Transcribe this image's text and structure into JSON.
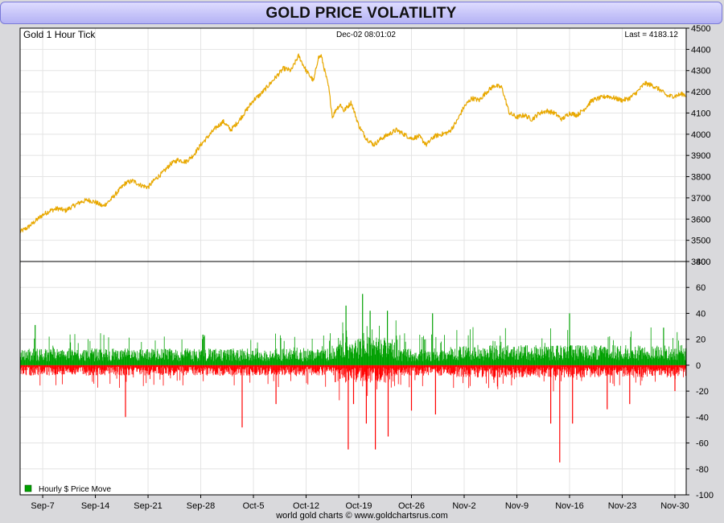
{
  "header": {
    "title": "GOLD PRICE VOLATILITY"
  },
  "chart_data": [
    {
      "type": "line",
      "title": "Gold 1 Hour Tick",
      "timestamp": "Dec-02  08:01:02",
      "last_label": "Last = 4183.12",
      "last_value": 4183.12,
      "ylim": [
        3400,
        4500
      ],
      "y_ticks": [
        3400,
        3500,
        3600,
        3700,
        3800,
        3900,
        4000,
        4100,
        4200,
        4300,
        4400,
        4500
      ],
      "color": "#e8a800",
      "series": [
        {
          "name": "Gold",
          "x_day": [
            0,
            1,
            2,
            3,
            4,
            5,
            6,
            7,
            8,
            9,
            10,
            11,
            12,
            13,
            14,
            15,
            16,
            17,
            18,
            19,
            20,
            21,
            22,
            23,
            24,
            25,
            26,
            27,
            28,
            29,
            30,
            31,
            32,
            33,
            34,
            35,
            36,
            37,
            38,
            39,
            39.6,
            40,
            41,
            41.5,
            42,
            42.6,
            43,
            44,
            45,
            46,
            47,
            48,
            49,
            50,
            51,
            52,
            53,
            54,
            55,
            56,
            57,
            58,
            59,
            60,
            61,
            62,
            63,
            64,
            65,
            66,
            67,
            68,
            69,
            70,
            71,
            72,
            73,
            74,
            75,
            76,
            77,
            78,
            79,
            80,
            81,
            82,
            83,
            84,
            85,
            86,
            87,
            88,
            88.5
          ],
          "values": [
            3540,
            3560,
            3590,
            3620,
            3640,
            3650,
            3640,
            3660,
            3680,
            3690,
            3680,
            3660,
            3690,
            3730,
            3770,
            3780,
            3760,
            3750,
            3790,
            3820,
            3860,
            3880,
            3870,
            3900,
            3950,
            3990,
            4030,
            4060,
            4020,
            4060,
            4110,
            4160,
            4190,
            4230,
            4270,
            4310,
            4300,
            4370,
            4300,
            4250,
            4360,
            4370,
            4220,
            4080,
            4120,
            4140,
            4110,
            4150,
            4040,
            3980,
            3950,
            3980,
            4000,
            4020,
            4000,
            3980,
            3990,
            3950,
            3990,
            4000,
            4010,
            4060,
            4130,
            4170,
            4160,
            4200,
            4230,
            4220,
            4100,
            4080,
            4090,
            4070,
            4100,
            4110,
            4100,
            4070,
            4100,
            4090,
            4120,
            4160,
            4170,
            4180,
            4170,
            4160,
            4170,
            4200,
            4240,
            4230,
            4210,
            4180,
            4180,
            4190,
            4183
          ]
        }
      ]
    },
    {
      "type": "bar",
      "title": "Hourly $ Price Move",
      "ylim": [
        -100,
        80
      ],
      "y_ticks": [
        -100,
        -80,
        -60,
        -40,
        -20,
        0,
        20,
        40,
        60,
        80
      ],
      "pos_color": "#00a000",
      "neg_color": "#ff0000",
      "spikes": [
        {
          "day": 2,
          "value": 31
        },
        {
          "day": 14,
          "value": -40
        },
        {
          "day": 29.5,
          "value": -48
        },
        {
          "day": 34,
          "value": -30
        },
        {
          "day": 43.3,
          "value": 46
        },
        {
          "day": 43.6,
          "value": -65
        },
        {
          "day": 44.3,
          "value": -30
        },
        {
          "day": 45.5,
          "value": 55
        },
        {
          "day": 46,
          "value": -45
        },
        {
          "day": 46.5,
          "value": 42
        },
        {
          "day": 47.2,
          "value": -65
        },
        {
          "day": 48.8,
          "value": 42
        },
        {
          "day": 48.9,
          "value": -55
        },
        {
          "day": 52,
          "value": -35
        },
        {
          "day": 54.8,
          "value": 40
        },
        {
          "day": 55.2,
          "value": -38
        },
        {
          "day": 70.5,
          "value": -45
        },
        {
          "day": 71.7,
          "value": -75
        },
        {
          "day": 73,
          "value": 40
        },
        {
          "day": 73.4,
          "value": -45
        },
        {
          "day": 78,
          "value": -34
        },
        {
          "day": 81,
          "value": -30
        },
        {
          "day": 85.5,
          "value": 29
        },
        {
          "day": 87,
          "value": -20
        }
      ]
    }
  ],
  "x_axis": {
    "ticks": [
      {
        "day": 3,
        "label": "Sep-7"
      },
      {
        "day": 10,
        "label": "Sep-14"
      },
      {
        "day": 17,
        "label": "Sep-21"
      },
      {
        "day": 24,
        "label": "Sep-28"
      },
      {
        "day": 31,
        "label": "Oct-5"
      },
      {
        "day": 38,
        "label": "Oct-12"
      },
      {
        "day": 45,
        "label": "Oct-19"
      },
      {
        "day": 52,
        "label": "Oct-26"
      },
      {
        "day": 59,
        "label": "Nov-2"
      },
      {
        "day": 66,
        "label": "Nov-9"
      },
      {
        "day": 73,
        "label": "Nov-16"
      },
      {
        "day": 80,
        "label": "Nov-23"
      },
      {
        "day": 87,
        "label": "Nov-30"
      }
    ],
    "day_range": [
      0,
      88.5
    ]
  },
  "legend": {
    "label": "Hourly $ Price Move",
    "color": "#00a000"
  },
  "footer": {
    "credit": "world gold charts © www.goldchartsrus.com"
  }
}
